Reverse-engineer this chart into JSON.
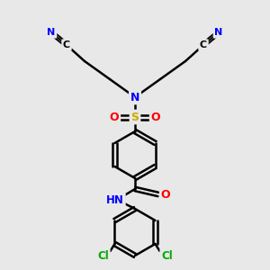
{
  "bg_color": "#e8e8e8",
  "atom_colors": {
    "C": "#000000",
    "N": "#0000ff",
    "O": "#ff0000",
    "S": "#ccaa00",
    "Cl": "#00aa00",
    "H": "#808080"
  },
  "bond_color": "#000000",
  "fig_size": [
    3.0,
    3.0
  ],
  "dpi": 100
}
